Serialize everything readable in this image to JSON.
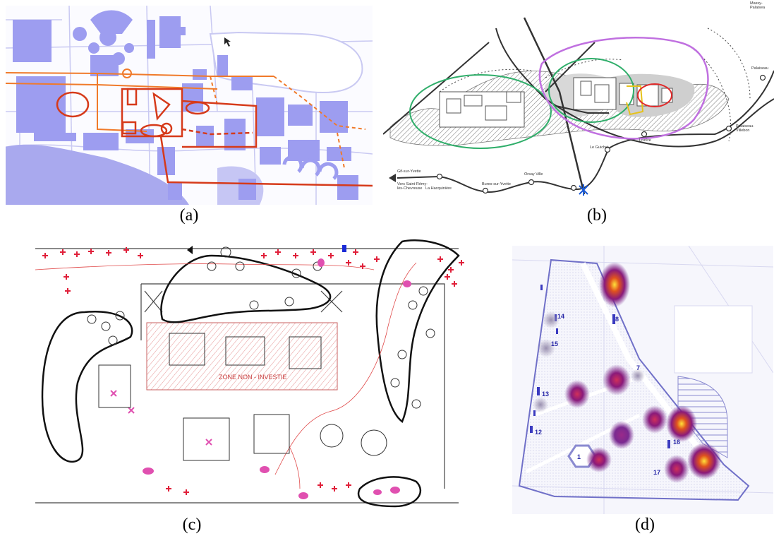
{
  "figure": {
    "captions": [
      "(a)",
      "(b)",
      "(c)",
      "(d)"
    ]
  },
  "panel_b": {
    "places": {
      "massy": "Massy-\nPalaisea",
      "palaiseau": "Palaiseau",
      "palaiseau_villebon": "Palaiseau-\nVillebon",
      "lozere": "Lozère",
      "le_guichet": "Le Guichet",
      "orsay_ville": "Orsay Ville",
      "bures": "Bures-sur-Yvette",
      "hacquiniere": "La Hacquinière",
      "gif": "Gif-sur-Yvette",
      "vers_saint_remy": "Vers Saint-Rémy-\nlès-Chevreuse"
    }
  },
  "panel_c": {
    "zone_label": "ZONE NON - INVESTIE"
  },
  "panel_d": {
    "markers": [
      "1",
      "7",
      "8",
      "12",
      "13",
      "14",
      "15",
      "16",
      "17"
    ]
  },
  "colors": {
    "map_blue": "#b8b8f5",
    "building_blue": "#9d9df0",
    "route_orange": "#f07a2a",
    "route_red": "#d63a1a",
    "boundary_green": "#2fae6a",
    "boundary_purple": "#c070e0",
    "boundary_yellow": "#e6c21a",
    "boundary_red": "#e02a2a",
    "sketch_red": "#e0203a",
    "sketch_pink": "#e050b0",
    "heat_core": "#ffe23a",
    "heat_mid": "#e0521e",
    "heat_outer": "#6a1a86"
  }
}
